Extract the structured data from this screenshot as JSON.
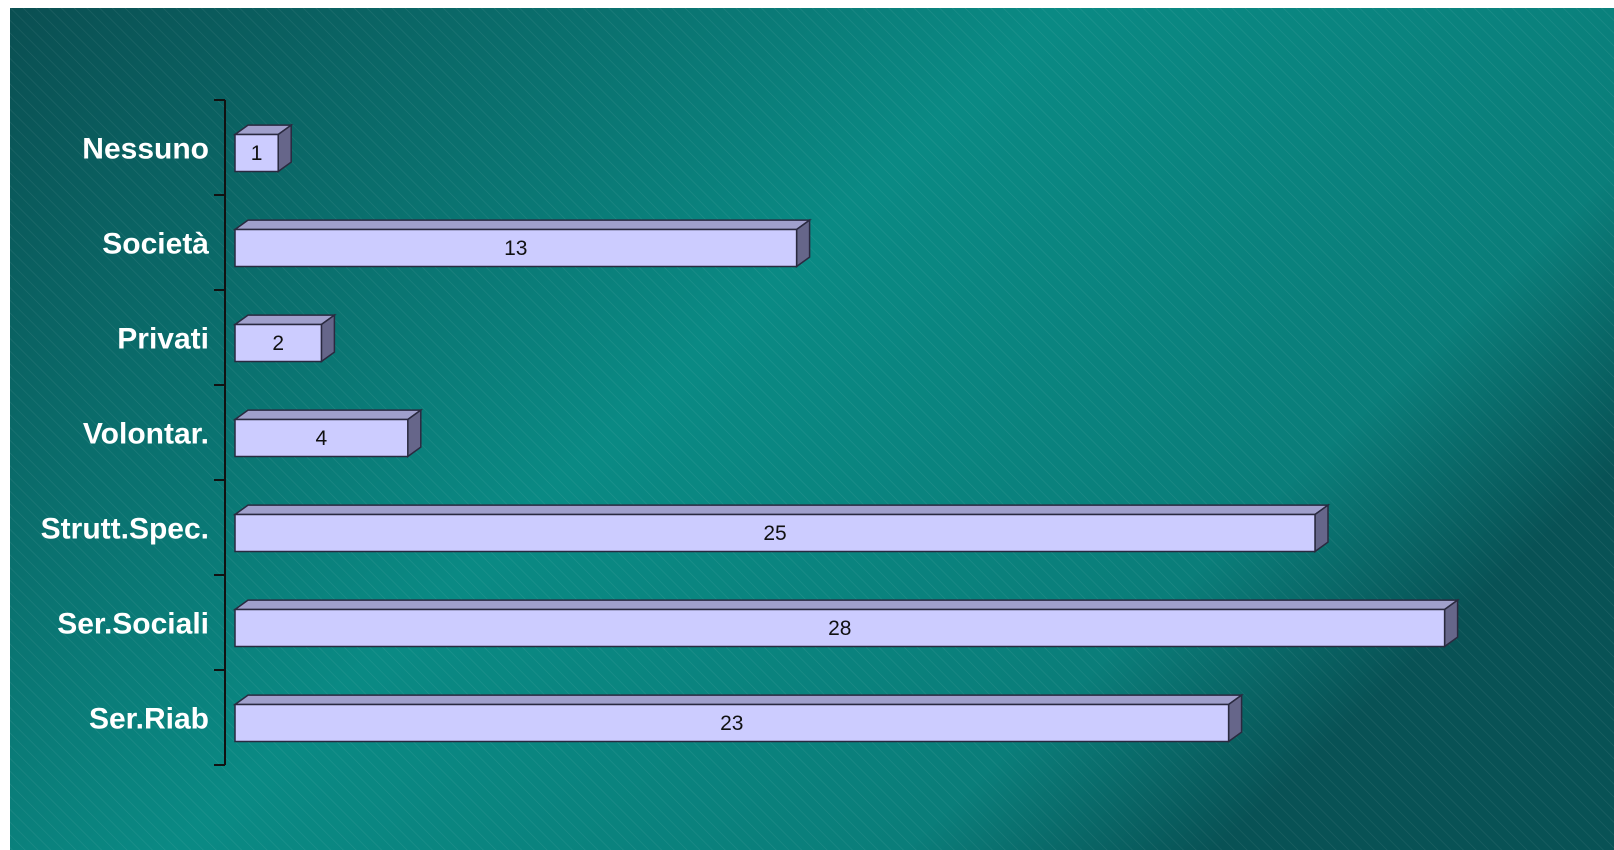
{
  "chart_data": {
    "type": "bar",
    "orientation": "horizontal",
    "style": "3d",
    "categories": [
      "Nessuno",
      "Società",
      "Privati",
      "Volontar.",
      "Strutt.Spec.",
      "Ser.Sociali",
      "Ser.Riab"
    ],
    "values": [
      1,
      13,
      2,
      4,
      25,
      28,
      23
    ],
    "data_labels": [
      "1",
      "13",
      "2",
      "4",
      "25",
      "28",
      "23"
    ],
    "title": "",
    "xlabel": "",
    "ylabel": "",
    "xlim": [
      0,
      29
    ],
    "grid": false,
    "legend": "none"
  },
  "colors": {
    "background_dark": "#0a4f52",
    "background_light": "#0a8a84",
    "bar_front": "#ccccff",
    "bar_top": "#a0a0cc",
    "bar_side": "#66668a",
    "bar_edge": "#2a2a40",
    "axis": "#111111",
    "category_text": "#ffffff",
    "value_text": "#111111"
  }
}
